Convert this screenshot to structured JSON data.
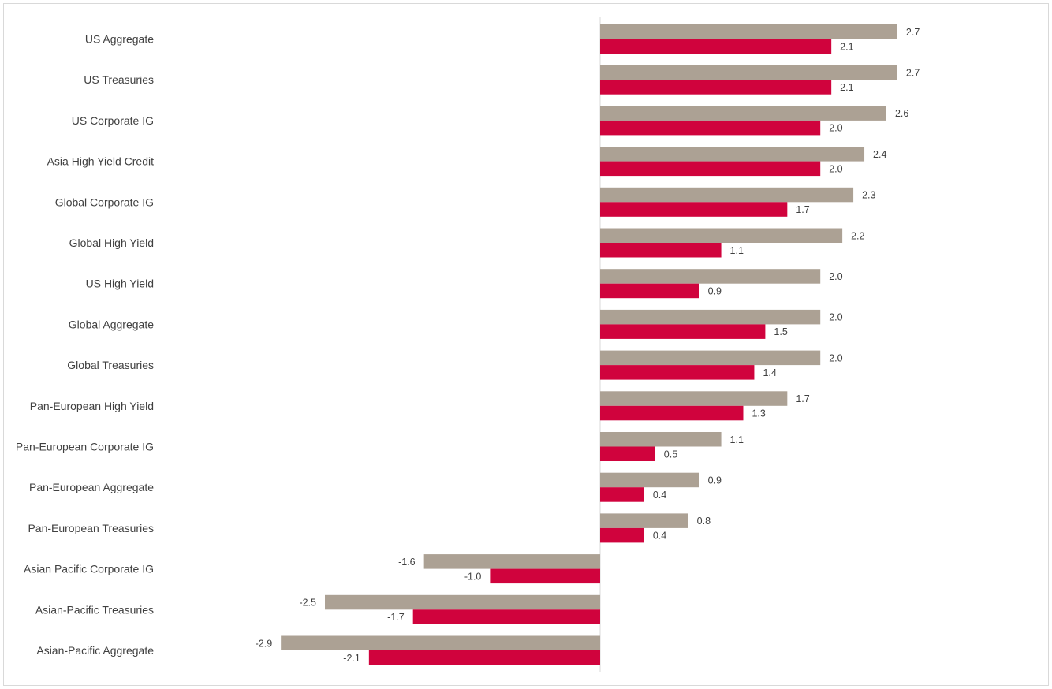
{
  "chart_data": {
    "type": "bar",
    "orientation": "horizontal",
    "categories": [
      "US Aggregate",
      "US Treasuries",
      "US Corporate IG",
      "Asia High Yield Credit",
      "Global Corporate IG",
      "Global High Yield",
      "US High Yield",
      "Global Aggregate",
      "Global Treasuries",
      "Pan-European High Yield",
      "Pan-European Corporate IG",
      "Pan-European Aggregate",
      "Pan-European Treasuries",
      "Asian Pacific Corporate IG",
      "Asian-Pacific Treasuries",
      "Asian-Pacific Aggregate"
    ],
    "series": [
      {
        "color": "#aca194",
        "values": [
          2.7,
          2.7,
          2.6,
          2.4,
          2.3,
          2.2,
          2.0,
          2.0,
          2.0,
          1.7,
          1.1,
          0.9,
          0.8,
          -1.6,
          -2.5,
          -2.9
        ]
      },
      {
        "color": "#d0033d",
        "values": [
          2.1,
          2.1,
          2.0,
          2.0,
          1.7,
          1.1,
          0.9,
          1.5,
          1.4,
          1.3,
          0.5,
          0.4,
          0.4,
          -1.0,
          -1.7,
          -2.1
        ]
      }
    ],
    "data_labels": true,
    "grid": false,
    "legend": "none",
    "xlim": [
      -2.9,
      2.7
    ]
  },
  "colors": {
    "axis": "#d9d9d9",
    "text": "#404040"
  }
}
